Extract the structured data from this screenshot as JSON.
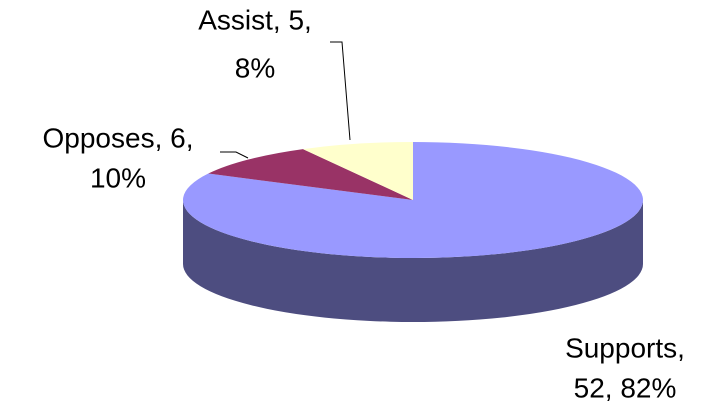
{
  "chart_data": {
    "type": "pie3d",
    "values": [
      52,
      6,
      5
    ],
    "value_labels": [
      [
        "Supports,",
        "52, 82%"
      ],
      [
        "Opposes, 6,",
        "10%"
      ],
      [
        "Assist, 5,",
        "8%"
      ]
    ],
    "colors": [
      "#9999ff",
      "#993366",
      "#ffffcc"
    ],
    "side_colors": [
      "#4d4d80",
      "#4d1a33",
      "#808066"
    ]
  }
}
